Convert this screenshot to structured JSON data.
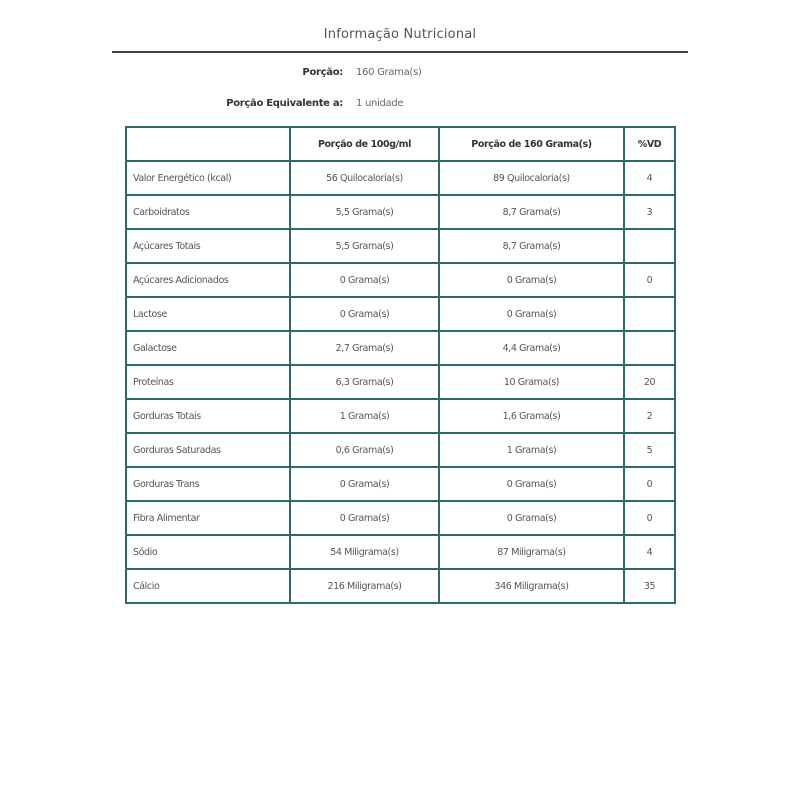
{
  "title": "Informação Nutricional",
  "portion": {
    "label": "Porção:",
    "value": "160 Grama(s)"
  },
  "equivalent": {
    "label": "Porção Equivalente a:",
    "value": "1 unidade"
  },
  "table": {
    "headers": [
      "",
      "Porção de 100g/ml",
      "Porção de 160 Grama(s)",
      "%VD"
    ],
    "rows": [
      [
        "Valor Energético (kcal)",
        "56 Quilocaloria(s)",
        "89 Quilocaloria(s)",
        "4"
      ],
      [
        "Carboidratos",
        "5,5 Grama(s)",
        "8,7 Grama(s)",
        "3"
      ],
      [
        "Açúcares Totais",
        "5,5 Grama(s)",
        "8,7 Grama(s)",
        ""
      ],
      [
        "Açúcares Adicionados",
        "0 Grama(s)",
        "0 Grama(s)",
        "0"
      ],
      [
        "Lactose",
        "0 Grama(s)",
        "0 Grama(s)",
        ""
      ],
      [
        "Galactose",
        "2,7 Grama(s)",
        "4,4 Grama(s)",
        ""
      ],
      [
        "Proteínas",
        "6,3 Grama(s)",
        "10 Grama(s)",
        "20"
      ],
      [
        "Gorduras Totais",
        "1 Grama(s)",
        "1,6 Grama(s)",
        "2"
      ],
      [
        "Gorduras Saturadas",
        "0,6 Grama(s)",
        "1 Grama(s)",
        "5"
      ],
      [
        "Gorduras Trans",
        "0 Grama(s)",
        "0 Grama(s)",
        "0"
      ],
      [
        "Fibra Alimentar",
        "0 Grama(s)",
        "0 Grama(s)",
        "0"
      ],
      [
        "Sódio",
        "54 Miligrama(s)",
        "87 Miligrama(s)",
        "4"
      ],
      [
        "Cálcio",
        "216 Miligrama(s)",
        "346 Miligrama(s)",
        "35"
      ]
    ]
  },
  "colors": {
    "border": "#2f6a6a"
  }
}
